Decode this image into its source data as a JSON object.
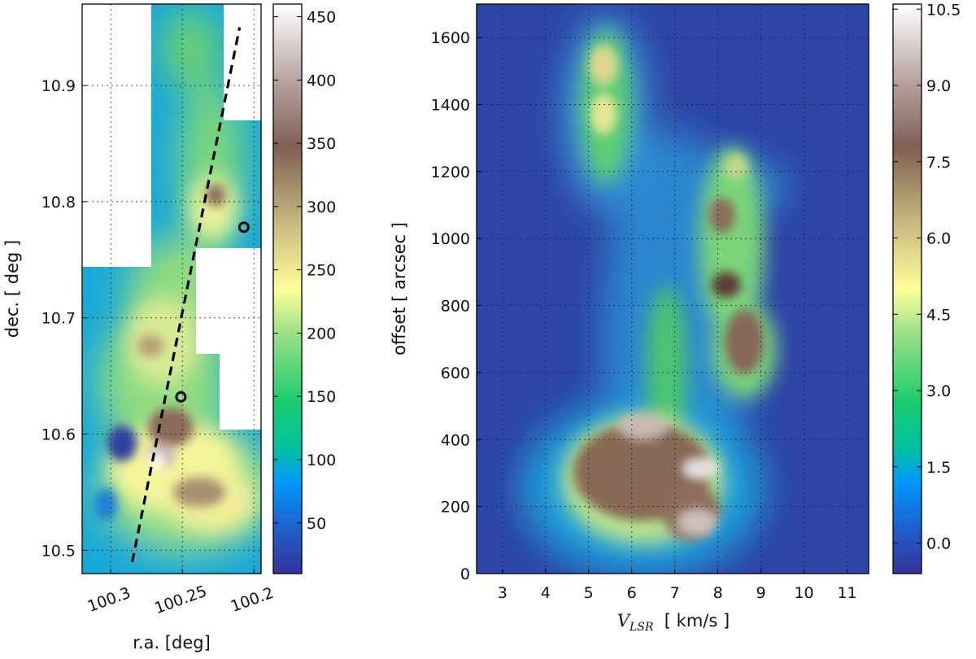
{
  "chart_data": [
    {
      "type": "heatmap",
      "panel": "map",
      "xlabel": "r.a. [deg]",
      "ylabel": "dec.  [ deg ]",
      "xlim": [
        100.32,
        100.195
      ],
      "ylim": [
        10.48,
        10.97
      ],
      "x_ticks": [
        100.3,
        100.25,
        100.2
      ],
      "x_tick_labels": [
        "100.3",
        "100.25",
        "100.2"
      ],
      "y_ticks": [
        10.5,
        10.6,
        10.7,
        10.8,
        10.9
      ],
      "y_tick_labels": [
        "10.5",
        "10.6",
        "10.7",
        "10.8",
        "10.9"
      ],
      "grid": true,
      "colormap": "terrain",
      "colorbar": {
        "range": [
          10,
          460
        ],
        "ticks": [
          50,
          100,
          150,
          200,
          250,
          300,
          350,
          400,
          450
        ],
        "tick_labels": [
          "50",
          "100",
          "150",
          "200",
          "250",
          "300",
          "350",
          "400",
          "450"
        ]
      },
      "cut_line": {
        "style": "dashed",
        "color": "#000000",
        "points": [
          [
            100.285,
            10.49
          ],
          [
            100.21,
            10.95
          ]
        ]
      },
      "markers": [
        {
          "shape": "circle",
          "x": 100.251,
          "y": 10.632
        },
        {
          "shape": "circle",
          "x": 100.207,
          "y": 10.778
        }
      ],
      "peak_regions": [
        {
          "x": 100.27,
          "y": 10.575,
          "value": 450
        },
        {
          "x": 100.255,
          "y": 10.605,
          "value": 380
        },
        {
          "x": 100.265,
          "y": 10.545,
          "value": 330
        },
        {
          "x": 100.225,
          "y": 10.8,
          "value": 340
        },
        {
          "x": 100.28,
          "y": 10.67,
          "value": 300
        }
      ]
    },
    {
      "type": "heatmap",
      "panel": "position-velocity",
      "xlabel": "V_LSR  [ km/s ]",
      "xlabel_main": "V",
      "xlabel_sub": "LSR",
      "xlabel_unit": "  [ km/s ]",
      "ylabel": "offset  [ arcsec ]",
      "xlim": [
        2.4,
        11.5
      ],
      "ylim": [
        0,
        1700
      ],
      "x_ticks": [
        3,
        4,
        5,
        6,
        7,
        8,
        9,
        10,
        11
      ],
      "x_tick_labels": [
        "3",
        "4",
        "5",
        "6",
        "7",
        "8",
        "9",
        "10",
        "11"
      ],
      "y_ticks": [
        0,
        200,
        400,
        600,
        800,
        1000,
        1200,
        1400,
        1600
      ],
      "y_tick_labels": [
        "0",
        "200",
        "400",
        "600",
        "800",
        "1000",
        "1200",
        "1400",
        "1600"
      ],
      "grid": true,
      "colormap": "terrain",
      "colorbar": {
        "range": [
          -0.6,
          10.6
        ],
        "ticks": [
          0.0,
          1.5,
          3.0,
          4.5,
          6.0,
          7.5,
          9.0,
          10.5
        ],
        "tick_labels": [
          "0.0",
          "1.5",
          "3.0",
          "4.5",
          "6.0",
          "7.5",
          "9.0",
          "10.5"
        ]
      },
      "peak_regions": [
        {
          "v": 6.6,
          "offset": 430,
          "value": 10.5
        },
        {
          "v": 7.7,
          "offset": 310,
          "value": 10.0
        },
        {
          "v": 7.6,
          "offset": 165,
          "value": 9.8
        },
        {
          "v": 6.2,
          "offset": 330,
          "value": 8.0
        },
        {
          "v": 8.3,
          "offset": 850,
          "value": 8.6
        },
        {
          "v": 8.9,
          "offset": 680,
          "value": 8.0
        },
        {
          "v": 8.2,
          "offset": 1060,
          "value": 7.6
        },
        {
          "v": 5.5,
          "offset": 1560,
          "value": 5.6
        },
        {
          "v": 5.4,
          "offset": 1400,
          "value": 5.2
        }
      ]
    }
  ]
}
